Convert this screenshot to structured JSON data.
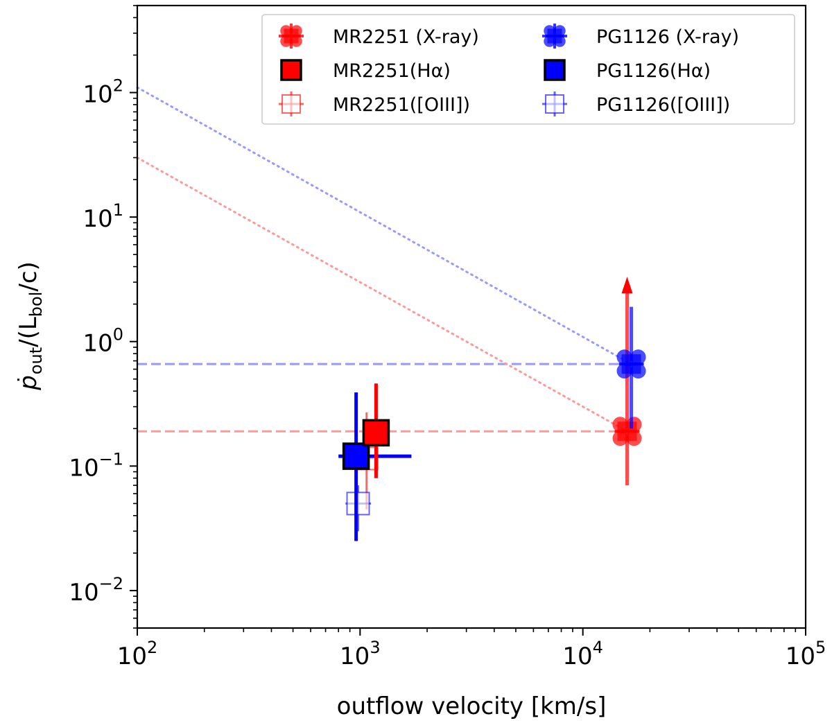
{
  "chart_data": {
    "type": "scatter",
    "xscale": "log",
    "yscale": "log",
    "xlim": [
      100,
      100000
    ],
    "ylim": [
      0.005,
      500
    ],
    "xlabel": "outflow velocity [km/s]",
    "ylabel": {
      "p": "p",
      "dot": "˙",
      "sub": "out",
      "mid": "/(L",
      "sub2": "bol",
      "end": "/c)"
    },
    "x_ticks": [
      {
        "value": 100,
        "base": "10",
        "exp": "2"
      },
      {
        "value": 1000,
        "base": "10",
        "exp": "3"
      },
      {
        "value": 10000,
        "base": "10",
        "exp": "4"
      },
      {
        "value": 100000,
        "base": "10",
        "exp": "5"
      }
    ],
    "y_ticks": [
      {
        "value": 0.01,
        "base": "10",
        "exp": "−2"
      },
      {
        "value": 0.1,
        "base": "10",
        "exp": "−1"
      },
      {
        "value": 1,
        "base": "10",
        "exp": "0"
      },
      {
        "value": 10,
        "base": "10",
        "exp": "1"
      },
      {
        "value": 100,
        "base": "10",
        "exp": "2"
      }
    ],
    "colors": {
      "red": "#ff0000",
      "blue": "#0000ff"
    },
    "reference_lines": [
      {
        "name": "MR2251 constant",
        "style": "dashed",
        "color": "#ff9999",
        "x": [
          100,
          15800
        ],
        "y": [
          0.19,
          0.19
        ]
      },
      {
        "name": "PG1126 constant",
        "style": "dashed",
        "color": "#9999ff",
        "x": [
          100,
          16500
        ],
        "y": [
          0.66,
          0.66
        ]
      },
      {
        "name": "MR2251 energy-conserving",
        "style": "dotted",
        "color": "#ff9999",
        "x": [
          100,
          15800
        ],
        "y": [
          30,
          0.19
        ]
      },
      {
        "name": "PG1126 energy-conserving",
        "style": "dotted",
        "color": "#9999ff",
        "x": [
          100,
          16500
        ],
        "y": [
          110,
          0.66
        ]
      }
    ],
    "series": [
      {
        "name": "MR2251 (X-ray)",
        "label": "MR2251 (X-ray)",
        "color": "#ff0000",
        "marker": "cross",
        "opacity": 0.7,
        "x": 15800,
        "y": 0.19,
        "xerr": [
          14500,
          17100
        ],
        "yerr": [
          0.07,
          2.5
        ],
        "upper_arrow": true
      },
      {
        "name": "PG1126 (X-ray)",
        "label": "PG1126 (X-ray)",
        "color": "#0000ff",
        "marker": "cross",
        "opacity": 0.7,
        "x": 16500,
        "y": 0.66,
        "xerr": [
          15400,
          17600
        ],
        "yerr": [
          0.2,
          1.9
        ],
        "upper_arrow": false
      },
      {
        "name": "MR2251(Hα)",
        "label": "MR2251(Hα)",
        "color": "#ff0000",
        "marker": "square-filled",
        "opacity": 1,
        "x": 1180,
        "y": 0.185,
        "xerr": [
          1080,
          1280
        ],
        "yerr": [
          0.08,
          0.46
        ]
      },
      {
        "name": "PG1126(Hα)",
        "label": "PG1126(Hα)",
        "color": "#0000ff",
        "marker": "square-filled",
        "opacity": 1,
        "x": 960,
        "y": 0.12,
        "xerr": [
          800,
          1700
        ],
        "yerr": [
          0.025,
          0.39
        ]
      },
      {
        "name": "MR2251([OIII])",
        "label": "MR2251([OIII])",
        "color": "#ff0000",
        "marker": "square-open",
        "opacity": 0.6,
        "x": 1070,
        "y": 0.115,
        "xerr": [
          1000,
          1150
        ],
        "yerr": [
          0.045,
          0.27
        ]
      },
      {
        "name": "PG1126([OIII])",
        "label": "PG1126([OIII])",
        "color": "#0000ff",
        "marker": "square-open",
        "opacity": 0.6,
        "x": 980,
        "y": 0.05,
        "xerr": [
          860,
          1120
        ],
        "yerr": [
          0.03,
          0.07
        ]
      }
    ],
    "legend": {
      "position": "top-right",
      "columns": 2,
      "entries": [
        "MR2251 (X-ray)",
        "PG1126 (X-ray)",
        "MR2251(Hα)",
        "PG1126(Hα)",
        "MR2251([OIII])",
        "PG1126([OIII])"
      ]
    }
  }
}
